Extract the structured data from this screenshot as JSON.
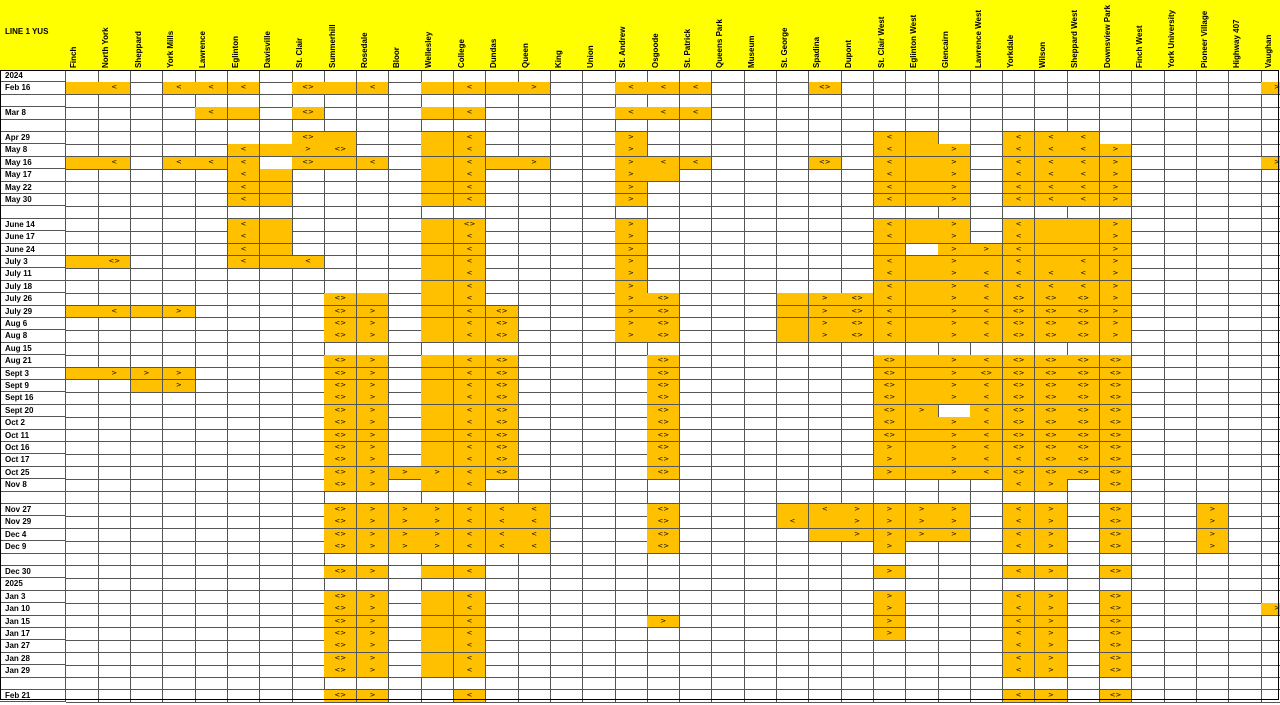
{
  "sheet": {
    "title": "LINE 1 YUS",
    "accent_color": "#ffc000",
    "header_color": "#ffff00"
  },
  "stations": [
    "Finch",
    "North York",
    "Sheppard",
    "York Mills",
    "Lawrence",
    "Eglinton",
    "Davisville",
    "St. Clair",
    "Summerhill",
    "Rosedale",
    "Bloor",
    "Wellesley",
    "College",
    "Dundas",
    "Queen",
    "King",
    "Union",
    "St. Andrew",
    "Osgoode",
    "St. Patrick",
    "Queens Park",
    "Museum",
    "St. George",
    "Spadina",
    "Dupont",
    "St. Clair West",
    "Eglinton West",
    "Glencairn",
    "Lawrence West",
    "Yorkdale",
    "Wilson",
    "Sheppard West",
    "Downsview Park",
    "Finch West",
    "York University",
    "Pioneer Village",
    "Highway 407",
    "Vaughan"
  ],
  "rows": [
    {
      "label": "2024",
      "cells": {}
    },
    {
      "label": "Feb 16",
      "cells": {
        "0": "",
        "1": "<",
        "3": "<",
        "4": "<",
        "5": "<",
        "7": "<>",
        "8": "",
        "9": "<",
        "11": "",
        "12": "<",
        "13": "",
        "14": ">",
        "17": "<",
        "18": "<",
        "19": "<",
        "23": "<>",
        "37": ">"
      }
    },
    {
      "label": "",
      "cells": {}
    },
    {
      "label": "Mar 8",
      "cells": {
        "4": "<",
        "5": "",
        "7": "<>",
        "11": "",
        "12": "<",
        "17": "<",
        "18": "<",
        "19": "<"
      }
    },
    {
      "label": "",
      "cells": {}
    },
    {
      "label": "Apr 29",
      "cells": {
        "7": "<>",
        "8": "",
        "11": "",
        "12": "<",
        "17": ">",
        "25": "<",
        "26": "",
        "29": "<",
        "30": "<",
        "31": "<"
      }
    },
    {
      "label": "May 8",
      "cells": {
        "5": "<",
        "6": "",
        "7": ">",
        "8": "<>",
        "11": "",
        "12": "<",
        "17": ">",
        "25": "<",
        "26": "",
        "27": ">",
        "29": "<",
        "30": "<",
        "31": "<",
        "32": ">"
      }
    },
    {
      "label": "May 16",
      "cells": {
        "0": "",
        "1": "<",
        "3": "<",
        "4": "<",
        "5": "<",
        "7": "<>",
        "8": "",
        "9": "<",
        "11": "",
        "12": "<",
        "13": "",
        "14": ">",
        "17": ">",
        "18": "<",
        "19": "<",
        "23": "<>",
        "25": "<",
        "26": "",
        "27": ">",
        "29": "<",
        "30": "<",
        "31": "<",
        "32": ">",
        "37": ">"
      }
    },
    {
      "label": "May 17",
      "cells": {
        "5": "<",
        "6": "",
        "11": "",
        "12": "<",
        "17": ">",
        "18": "",
        "25": "<",
        "26": "",
        "27": ">",
        "29": "<",
        "30": "<",
        "31": "<",
        "32": ">"
      }
    },
    {
      "label": "May 22",
      "cells": {
        "5": "<",
        "6": "",
        "11": "",
        "12": "<",
        "17": ">",
        "25": "<",
        "26": "",
        "27": ">",
        "29": "<",
        "30": "<",
        "31": "<",
        "32": ">"
      }
    },
    {
      "label": "May 30",
      "cells": {
        "5": "<",
        "6": "",
        "11": "",
        "12": "<",
        "17": ">",
        "25": "<",
        "26": "",
        "27": ">",
        "29": "<",
        "30": "<",
        "31": "<",
        "32": ">"
      }
    },
    {
      "label": "",
      "cells": {}
    },
    {
      "label": "June 14",
      "cells": {
        "5": "<",
        "6": "",
        "11": "",
        "12": "<>",
        "17": ">",
        "25": "<",
        "26": "",
        "27": ">",
        "29": "<",
        "30": "",
        "31": "",
        "32": ">"
      }
    },
    {
      "label": "June 17",
      "cells": {
        "5": "<",
        "6": "",
        "11": "",
        "12": "<",
        "17": ">",
        "25": "<",
        "26": "",
        "27": ">",
        "29": "<",
        "30": "",
        "31": "",
        "32": ">"
      }
    },
    {
      "label": "June 24",
      "cells": {
        "5": "<",
        "6": "",
        "11": "",
        "12": "<",
        "17": ">",
        "25": "",
        "27": ">",
        "28": ">",
        "29": "<",
        "30": "",
        "31": "",
        "32": ">"
      }
    },
    {
      "label": "July 3",
      "cells": {
        "0": "",
        "1": "<>",
        "5": "<",
        "6": "",
        "7": "<",
        "11": "",
        "12": "<",
        "17": ">",
        "25": "<",
        "26": "",
        "27": ">",
        "28": "",
        "29": "<",
        "30": "",
        "31": "<",
        "32": ">"
      }
    },
    {
      "label": "July 11",
      "cells": {
        "11": "",
        "12": "<",
        "17": ">",
        "25": "<",
        "26": "",
        "27": ">",
        "28": "<",
        "29": "<",
        "30": "<",
        "31": "<",
        "32": ">"
      }
    },
    {
      "label": "July 18",
      "cells": {
        "11": "",
        "12": "<",
        "17": ">",
        "25": "<",
        "26": "",
        "27": ">",
        "28": "<",
        "29": "<",
        "30": "<",
        "31": "<",
        "32": ">"
      }
    },
    {
      "label": "July 26",
      "cells": {
        "8": "<>",
        "9": "",
        "11": "",
        "12": "<",
        "17": ">",
        "18": "<>",
        "22": "",
        "23": ">",
        "24": "<>",
        "25": "<",
        "26": "",
        "27": ">",
        "28": "<",
        "29": "<>",
        "30": "<>",
        "31": "<>",
        "32": ">"
      }
    },
    {
      "label": "July 29",
      "cells": {
        "0": "",
        "1": "<",
        "2": "",
        "3": ">",
        "8": "<>",
        "9": ">",
        "11": "",
        "12": "<",
        "13": "<>",
        "17": ">",
        "18": "<>",
        "22": "",
        "23": ">",
        "24": "<>",
        "25": "<",
        "26": "",
        "27": ">",
        "28": "<",
        "29": "<>",
        "30": "<>",
        "31": "<>",
        "32": ">"
      }
    },
    {
      "label": "Aug 6",
      "cells": {
        "8": "<>",
        "9": ">",
        "11": "",
        "12": "<",
        "13": "<>",
        "17": ">",
        "18": "<>",
        "22": "",
        "23": ">",
        "24": "<>",
        "25": "<",
        "26": "",
        "27": ">",
        "28": "<",
        "29": "<>",
        "30": "<>",
        "31": "<>",
        "32": ">"
      }
    },
    {
      "label": "Aug 8",
      "cells": {
        "8": "<>",
        "9": ">",
        "11": "",
        "12": "<",
        "13": "<>",
        "17": ">",
        "18": "<>",
        "22": "",
        "23": ">",
        "24": "<>",
        "25": "<",
        "26": "",
        "27": ">",
        "28": "<",
        "29": "<>",
        "30": "<>",
        "31": "<>",
        "32": ">"
      }
    },
    {
      "label": "Aug 15",
      "cells": {}
    },
    {
      "label": "Aug 21",
      "cells": {
        "8": "<>",
        "9": ">",
        "11": "",
        "12": "<",
        "13": "<>",
        "18": "<>",
        "25": "<>",
        "26": "",
        "27": ">",
        "28": "<",
        "29": "<>",
        "30": "<>",
        "31": "<>",
        "32": "<>"
      }
    },
    {
      "label": "Sept 3",
      "cells": {
        "0": "",
        "1": ">",
        "2": ">",
        "3": ">",
        "8": "<>",
        "9": ">",
        "11": "",
        "12": "<",
        "13": "<>",
        "18": "<>",
        "25": "<>",
        "26": "",
        "27": ">",
        "28": "<>",
        "29": "<>",
        "30": "<>",
        "31": "<>",
        "32": "<>"
      }
    },
    {
      "label": "Sept 9",
      "cells": {
        "2": "",
        "3": ">",
        "8": "<>",
        "9": ">",
        "11": "",
        "12": "<",
        "13": "<>",
        "18": "<>",
        "25": "<>",
        "26": "",
        "27": ">",
        "28": "<",
        "29": "<>",
        "30": "<>",
        "31": "<>",
        "32": "<>"
      }
    },
    {
      "label": "Sept 16",
      "cells": {
        "8": "<>",
        "9": ">",
        "11": "",
        "12": "<",
        "13": "<>",
        "18": "<>",
        "25": "<>",
        "26": "",
        "27": ">",
        "28": "<",
        "29": "<>",
        "30": "<>",
        "31": "<>",
        "32": "<>"
      }
    },
    {
      "label": "Sept 20",
      "cells": {
        "8": "<>",
        "9": ">",
        "11": "",
        "12": "<",
        "13": "<>",
        "18": "<>",
        "25": "<>",
        "26": ">",
        "28": "<",
        "29": "<>",
        "30": "<>",
        "31": "<>",
        "32": "<>"
      }
    },
    {
      "label": "Oct 2",
      "cells": {
        "8": "<>",
        "9": ">",
        "11": "",
        "12": "<",
        "13": "<>",
        "18": "<>",
        "25": "<>",
        "26": "",
        "27": ">",
        "28": "<",
        "29": "<>",
        "30": "<>",
        "31": "<>",
        "32": "<>"
      }
    },
    {
      "label": "Oct 11",
      "cells": {
        "8": "<>",
        "9": ">",
        "11": "",
        "12": "<",
        "13": "<>",
        "18": "<>",
        "25": "<>",
        "26": "",
        "27": ">",
        "28": "<",
        "29": "<>",
        "30": "<>",
        "31": "<>",
        "32": "<>"
      }
    },
    {
      "label": "Oct 16",
      "cells": {
        "8": "<>",
        "9": ">",
        "11": "",
        "12": "<",
        "13": "<>",
        "18": "<>",
        "25": ">",
        "26": "",
        "27": ">",
        "28": "<",
        "29": "<>",
        "30": "<>",
        "31": "<>",
        "32": "<>"
      }
    },
    {
      "label": "Oct 17",
      "cells": {
        "8": "<>",
        "9": ">",
        "11": "",
        "12": "<",
        "13": "<>",
        "18": "<>",
        "25": ">",
        "26": "",
        "27": ">",
        "28": "<",
        "29": "<",
        "30": "<>",
        "31": "<>",
        "32": "<>"
      }
    },
    {
      "label": "Oct 25",
      "cells": {
        "8": "<>",
        "9": ">",
        "10": ">",
        "11": ">",
        "12": "<",
        "13": "<>",
        "18": "<>",
        "25": ">",
        "26": "",
        "27": ">",
        "28": "<",
        "29": "<>",
        "30": "<>",
        "31": "<>",
        "32": "<>"
      }
    },
    {
      "label": "Nov 8",
      "cells": {
        "8": "<>",
        "9": ">",
        "11": "",
        "12": "<",
        "29": "<",
        "30": ">",
        "32": "<>"
      }
    },
    {
      "label": "",
      "cells": {}
    },
    {
      "label": "Nov 27",
      "cells": {
        "8": "<>",
        "9": ">",
        "10": ">",
        "11": ">",
        "12": "<",
        "13": "<",
        "14": "<",
        "18": "<>",
        "22": "",
        "23": "<",
        "24": ">",
        "25": ">",
        "26": ">",
        "27": ">",
        "29": "<",
        "30": ">",
        "32": "<>",
        "35": ">"
      }
    },
    {
      "label": "Nov 29",
      "cells": {
        "8": "<>",
        "9": ">",
        "10": ">",
        "11": ">",
        "12": "<",
        "13": "<",
        "14": "<",
        "18": "<>",
        "22": "<",
        "23": "",
        "24": ">",
        "25": ">",
        "26": ">",
        "27": ">",
        "29": "<",
        "30": ">",
        "32": "<>",
        "35": ">"
      }
    },
    {
      "label": "Dec 4",
      "cells": {
        "8": "<>",
        "9": ">",
        "10": ">",
        "11": ">",
        "12": "<",
        "13": "<",
        "14": "<",
        "18": "<>",
        "23": "",
        "24": ">",
        "25": ">",
        "26": ">",
        "27": ">",
        "29": "<",
        "30": ">",
        "32": "<>",
        "35": ">"
      }
    },
    {
      "label": "Dec 9",
      "cells": {
        "8": "<>",
        "9": ">",
        "10": ">",
        "11": ">",
        "12": "<",
        "13": "<",
        "14": "<",
        "18": "<>",
        "25": ">",
        "29": "<",
        "30": ">",
        "32": "<>",
        "35": ">"
      }
    },
    {
      "label": "",
      "cells": {}
    },
    {
      "label": "Dec 30",
      "cells": {
        "8": "<>",
        "9": ">",
        "11": "",
        "12": "<",
        "25": ">",
        "29": "<",
        "30": ">",
        "32": "<>"
      }
    },
    {
      "label": "2025",
      "cells": {}
    },
    {
      "label": "Jan 3",
      "cells": {
        "8": "<>",
        "9": ">",
        "11": "",
        "12": "<",
        "25": ">",
        "29": "<",
        "30": ">",
        "32": "<>"
      }
    },
    {
      "label": "Jan 10",
      "cells": {
        "8": "<>",
        "9": ">",
        "11": "",
        "12": "<",
        "25": ">",
        "29": "<",
        "30": ">",
        "32": "<>",
        "37": ">"
      }
    },
    {
      "label": "Jan 15",
      "cells": {
        "8": "<>",
        "9": ">",
        "11": "",
        "12": "<",
        "18": ">",
        "25": ">",
        "29": "<",
        "30": ">",
        "32": "<>"
      }
    },
    {
      "label": "Jan 17",
      "cells": {
        "8": "<>",
        "9": ">",
        "11": "",
        "12": "<",
        "25": ">",
        "29": "<",
        "30": ">",
        "32": "<>"
      }
    },
    {
      "label": "Jan 27",
      "cells": {
        "8": "<>",
        "9": ">",
        "11": "",
        "12": "<",
        "29": "<",
        "30": ">",
        "32": "<>"
      }
    },
    {
      "label": "Jan 28",
      "cells": {
        "8": "<>",
        "9": ">",
        "11": "",
        "12": "<",
        "29": "<",
        "30": ">",
        "32": "<>"
      }
    },
    {
      "label": "Jan 29",
      "cells": {
        "8": "<>",
        "9": ">",
        "11": "",
        "12": "<",
        "29": "<",
        "30": ">",
        "32": "<>"
      }
    },
    {
      "label": "",
      "cells": {}
    },
    {
      "label": "Feb 21",
      "cells": {
        "8": "<>",
        "9": ">",
        "12": "<",
        "29": "<",
        "30": ">",
        "32": "<>"
      }
    }
  ]
}
